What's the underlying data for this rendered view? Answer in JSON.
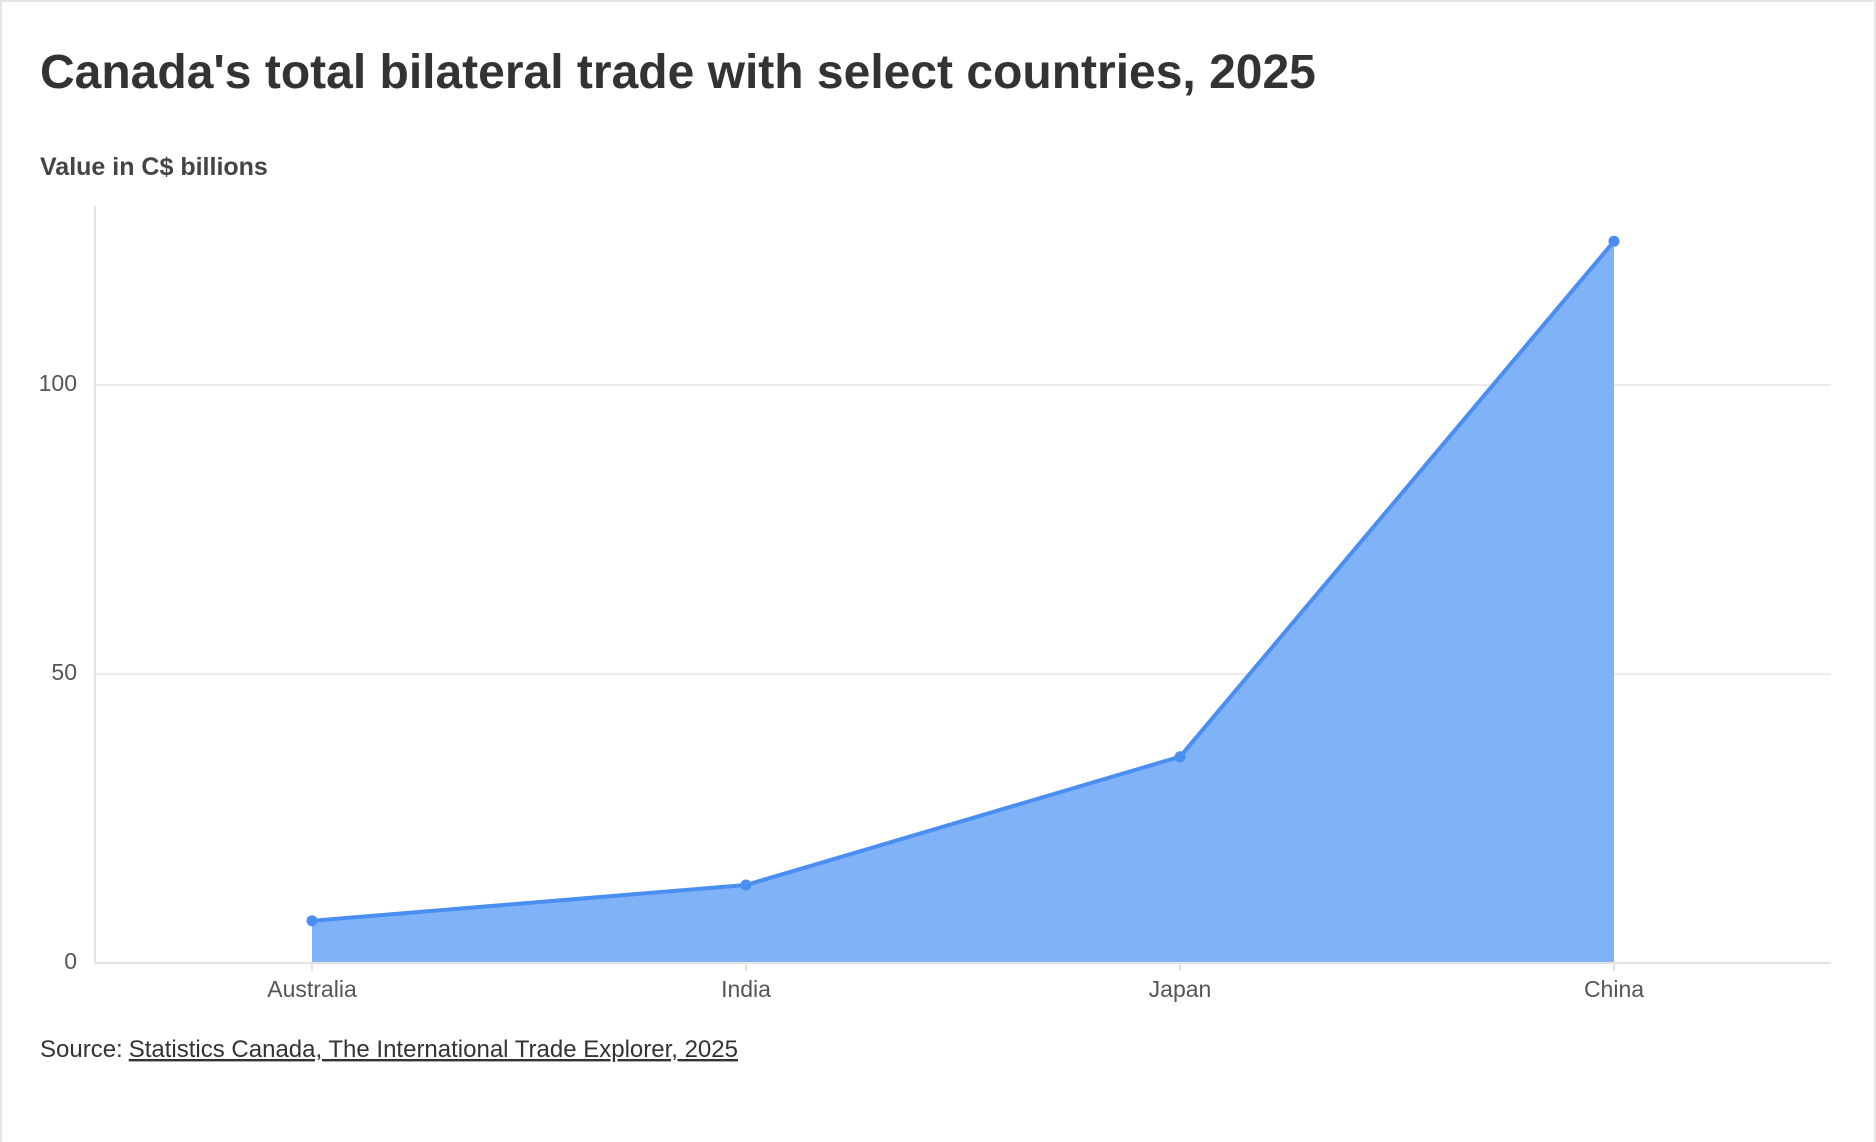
{
  "chart_data": {
    "type": "area",
    "title": "Canada's total bilateral trade with select countries, 2025",
    "subtitle": "Value in C$ billions",
    "categories": [
      "Australia",
      "India",
      "Japan",
      "China"
    ],
    "values": [
      7.3,
      13.5,
      35.7,
      124.9
    ],
    "color": "#4a8ef2",
    "fill": "#80b2f7",
    "ylim": [
      0,
      131
    ],
    "yticks": [
      0,
      50,
      100
    ],
    "grid": true,
    "source_label": "Source:",
    "source_link": "Statistics Canada, The International Trade Explorer, 2025"
  }
}
